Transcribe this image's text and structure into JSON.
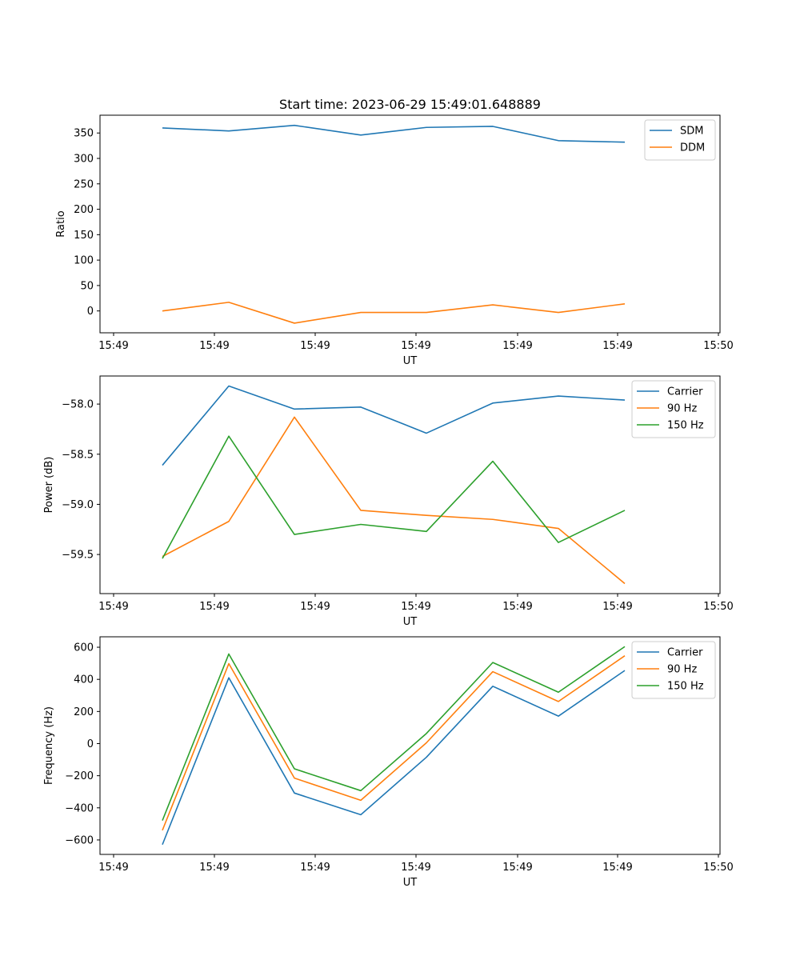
{
  "title": "Start time: 2023-06-29 15:49:01.648889",
  "chart_data": [
    {
      "type": "line",
      "ylabel": "Ratio",
      "xlabel": "UT",
      "x_tick_labels": [
        "15:49",
        "15:49",
        "15:49",
        "15:49",
        "15:49",
        "15:49",
        "15:50"
      ],
      "y_ticks": [
        0,
        50,
        100,
        150,
        200,
        250,
        300,
        350
      ],
      "ylim": [
        -43,
        385
      ],
      "legend_position": "upper right",
      "series": [
        {
          "name": "SDM",
          "color": "#1f77b4",
          "values": [
            360,
            354,
            365,
            346,
            361,
            363,
            335,
            332
          ]
        },
        {
          "name": "DDM",
          "color": "#ff7f0e",
          "values": [
            0,
            17,
            -24,
            -3,
            -3,
            12,
            -3,
            14
          ]
        }
      ]
    },
    {
      "type": "line",
      "ylabel": "Power (dB)",
      "xlabel": "UT",
      "x_tick_labels": [
        "15:49",
        "15:49",
        "15:49",
        "15:49",
        "15:49",
        "15:49",
        "15:50"
      ],
      "y_ticks": [
        -59.5,
        -59.0,
        -58.5,
        -58.0
      ],
      "y_tick_labels": [
        "−59.5",
        "−59.0",
        "−58.5",
        "−58.0"
      ],
      "ylim": [
        -59.89,
        -57.72
      ],
      "legend_position": "upper right",
      "series": [
        {
          "name": "Carrier",
          "color": "#1f77b4",
          "values": [
            -58.61,
            -57.82,
            -58.05,
            -58.03,
            -58.29,
            -57.99,
            -57.92,
            -57.96
          ]
        },
        {
          "name": "90 Hz",
          "color": "#ff7f0e",
          "values": [
            -59.52,
            -59.17,
            -58.13,
            -59.06,
            -59.11,
            -59.15,
            -59.24,
            -59.79
          ]
        },
        {
          "name": "150 Hz",
          "color": "#2ca02c",
          "values": [
            -59.54,
            -58.32,
            -59.3,
            -59.2,
            -59.27,
            -58.57,
            -59.38,
            -59.06
          ]
        }
      ]
    },
    {
      "type": "line",
      "ylabel": "Frequency (Hz)",
      "xlabel": "UT",
      "x_tick_labels": [
        "15:49",
        "15:49",
        "15:49",
        "15:49",
        "15:49",
        "15:49",
        "15:50"
      ],
      "y_ticks": [
        -600,
        -400,
        -200,
        0,
        200,
        400,
        600
      ],
      "y_tick_labels": [
        "−600",
        "−400",
        "−200",
        "0",
        "200",
        "400",
        "600"
      ],
      "ylim": [
        -690,
        665
      ],
      "legend_position": "upper right",
      "series": [
        {
          "name": "Carrier",
          "color": "#1f77b4",
          "values": [
            -629,
            410,
            -308,
            -443,
            -85,
            357,
            171,
            455
          ]
        },
        {
          "name": "90 Hz",
          "color": "#ff7f0e",
          "values": [
            -540,
            498,
            -215,
            -353,
            5,
            448,
            262,
            547
          ]
        },
        {
          "name": "150 Hz",
          "color": "#2ca02c",
          "values": [
            -479,
            558,
            -157,
            -293,
            63,
            505,
            320,
            604
          ]
        }
      ]
    }
  ]
}
